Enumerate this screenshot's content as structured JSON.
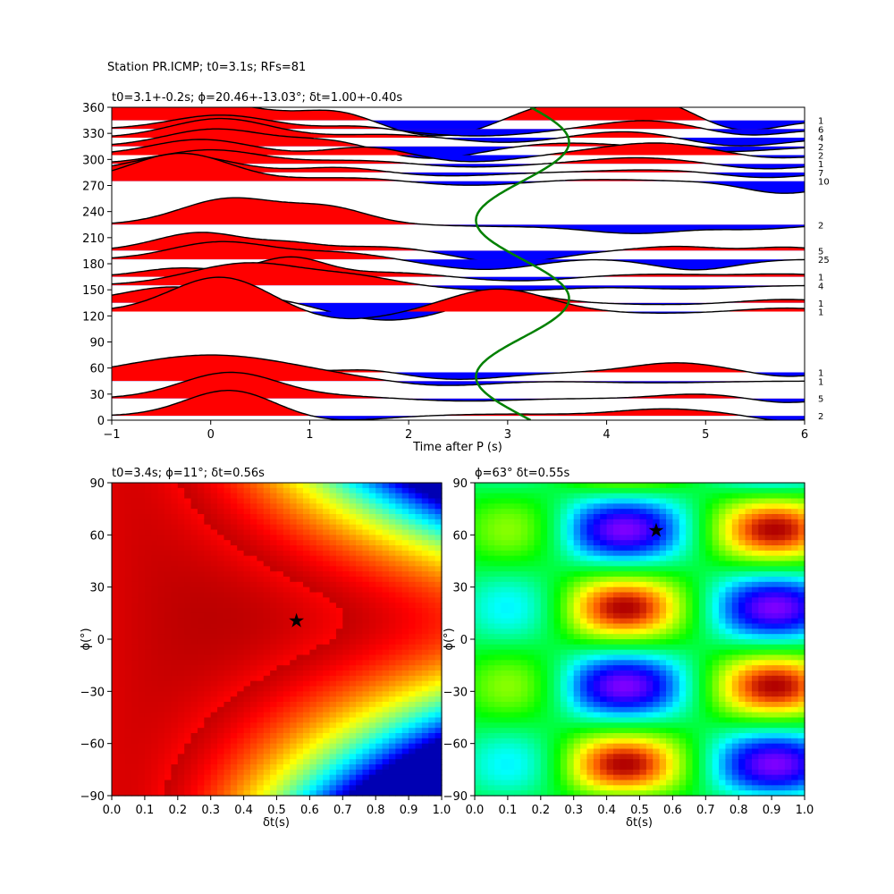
{
  "suptitle": "Station PR.ICMP; t0=3.1s; RFs=81",
  "chart_data": [
    {
      "type": "line",
      "title": "t0=3.1+-0.2s; ϕ=20.46+-13.03°; δt=1.00+-0.40s",
      "xlabel": "Time after P (s)",
      "ylabel": "",
      "xlim": [
        -1,
        6
      ],
      "ylim": [
        0,
        360
      ],
      "xticks": [
        -1,
        0,
        1,
        2,
        3,
        4,
        5,
        6
      ],
      "yticks": [
        0,
        30,
        60,
        90,
        120,
        150,
        180,
        210,
        240,
        270,
        300,
        330,
        360
      ],
      "fill_positive_color": "#ff0000",
      "fill_negative_color": "#0000ff",
      "curve_color": "#008000",
      "traces": [
        {
          "baz": 345,
          "count": "1",
          "peaks": [
            [
              -0.3,
              0.7,
              25
            ],
            [
              1.3,
              0.35,
              12
            ],
            [
              3.4,
              0.5,
              20
            ],
            [
              4.4,
              0.5,
              25
            ],
            [
              2.4,
              0.6,
              -20
            ],
            [
              5.3,
              0.4,
              -15
            ]
          ]
        },
        {
          "baz": 335,
          "count": "6",
          "peaks": [
            [
              0.1,
              0.5,
              16
            ],
            [
              1.5,
              0.3,
              4
            ],
            [
              2.7,
              0.6,
              -8
            ],
            [
              4.4,
              0.5,
              10
            ],
            [
              5.4,
              0.4,
              -8
            ]
          ]
        },
        {
          "baz": 325,
          "count": "4",
          "peaks": [
            [
              0.1,
              0.5,
              22
            ],
            [
              1.8,
              0.5,
              4
            ],
            [
              3.0,
              0.5,
              -6
            ],
            [
              4.2,
              0.5,
              8
            ],
            [
              5.3,
              0.5,
              -10
            ]
          ]
        },
        {
          "baz": 315,
          "count": "2",
          "peaks": [
            [
              0.05,
              0.5,
              20
            ],
            [
              1.2,
              0.4,
              8
            ],
            [
              2.2,
              0.5,
              -14
            ],
            [
              3.6,
              0.5,
              4
            ],
            [
              5.2,
              0.5,
              -6
            ]
          ]
        },
        {
          "baz": 305,
          "count": "2",
          "peaks": [
            [
              -0.1,
              0.5,
              18
            ],
            [
              1.6,
              0.4,
              10
            ],
            [
              2.6,
              0.5,
              -8
            ],
            [
              4.5,
              0.6,
              14
            ],
            [
              5.6,
              0.4,
              -5
            ]
          ]
        },
        {
          "baz": 295,
          "count": "1",
          "peaks": [
            [
              0.0,
              0.5,
              16
            ],
            [
              1.5,
              0.5,
              4
            ],
            [
              2.6,
              0.5,
              -4
            ],
            [
              4.3,
              0.5,
              7
            ],
            [
              5.6,
              0.4,
              -6
            ]
          ]
        },
        {
          "baz": 285,
          "count": "7",
          "peaks": [
            [
              -0.3,
              0.5,
              20
            ],
            [
              1.3,
              0.4,
              6
            ],
            [
              2.4,
              0.5,
              -4
            ],
            [
              4.4,
              0.5,
              3
            ],
            [
              5.6,
              0.4,
              -6
            ]
          ]
        },
        {
          "baz": 275,
          "count": "10",
          "peaks": [
            [
              -0.3,
              0.5,
              32
            ],
            [
              1.4,
              0.5,
              4
            ],
            [
              2.6,
              0.5,
              -5
            ],
            [
              3.9,
              0.5,
              2
            ],
            [
              5.8,
              0.4,
              -14
            ]
          ]
        },
        {
          "baz": 225,
          "count": "2",
          "peaks": [
            [
              0.2,
              0.5,
              30
            ],
            [
              1.2,
              0.4,
              18
            ],
            [
              3.0,
              0.6,
              -2
            ],
            [
              4.3,
              0.5,
              -10
            ],
            [
              5.5,
              0.4,
              -5
            ]
          ]
        },
        {
          "baz": 195,
          "count": "5",
          "peaks": [
            [
              -0.1,
              0.45,
              21
            ],
            [
              0.8,
              0.3,
              7
            ],
            [
              1.7,
              0.5,
              5
            ],
            [
              3.0,
              0.5,
              -14
            ],
            [
              4.7,
              0.4,
              5
            ],
            [
              5.8,
              0.3,
              4
            ]
          ]
        },
        {
          "baz": 185,
          "count": "25",
          "peaks": [
            [
              0.1,
              0.5,
              20
            ],
            [
              1.3,
              0.5,
              8
            ],
            [
              2.8,
              0.6,
              -12
            ],
            [
              3.6,
              0.4,
              3
            ],
            [
              4.9,
              0.4,
              -12
            ]
          ]
        },
        {
          "baz": 165,
          "count": "1",
          "peaks": [
            [
              -0.3,
              0.4,
              10
            ],
            [
              0.8,
              0.35,
              22
            ],
            [
              1.8,
              0.5,
              5
            ],
            [
              3.1,
              0.5,
              -5
            ],
            [
              4.5,
              0.6,
              3
            ],
            [
              5.8,
              0.4,
              3
            ]
          ]
        },
        {
          "baz": 155,
          "count": "4",
          "peaks": [
            [
              0.4,
              0.6,
              26
            ],
            [
              1.5,
              0.4,
              8
            ],
            [
              3.0,
              0.6,
              -6
            ],
            [
              4.8,
              0.5,
              -4
            ]
          ]
        },
        {
          "baz": 135,
          "count": "1",
          "peaks": [
            [
              -0.4,
              0.5,
              18
            ],
            [
              0.6,
              0.4,
              6
            ],
            [
              1.8,
              0.6,
              -20
            ],
            [
              3.0,
              0.4,
              12
            ],
            [
              4.6,
              0.5,
              -2
            ],
            [
              5.8,
              0.4,
              4
            ]
          ]
        },
        {
          "baz": 125,
          "count": "1",
          "peaks": [
            [
              0.1,
              0.5,
              40
            ],
            [
              1.3,
              0.5,
              -10
            ],
            [
              2.9,
              0.5,
              26
            ],
            [
              4.5,
              0.5,
              -2
            ],
            [
              5.8,
              0.4,
              4
            ]
          ]
        },
        {
          "baz": 55,
          "count": "1",
          "peaks": [
            [
              0.1,
              0.45,
              18
            ],
            [
              1.6,
              0.3,
              4
            ],
            [
              2.5,
              0.5,
              -8
            ],
            [
              4.7,
              0.45,
              11
            ],
            [
              5.8,
              0.3,
              -5
            ]
          ]
        },
        {
          "baz": 45,
          "count": "1",
          "peaks": [
            [
              0.0,
              0.9,
              30
            ],
            [
              2.3,
              0.5,
              -6
            ],
            [
              4.5,
              0.6,
              -2
            ]
          ]
        },
        {
          "baz": 25,
          "count": "5",
          "peaks": [
            [
              0.2,
              0.5,
              30
            ],
            [
              1.4,
              0.4,
              2
            ],
            [
              2.6,
              0.5,
              -3
            ],
            [
              4.9,
              0.4,
              5
            ],
            [
              5.8,
              0.3,
              -5
            ]
          ]
        },
        {
          "baz": 5,
          "count": "2",
          "peaks": [
            [
              0.2,
              0.45,
              30
            ],
            [
              1.2,
              0.5,
              -6
            ],
            [
              3.0,
              0.6,
              2
            ],
            [
              4.6,
              0.5,
              8
            ],
            [
              5.8,
              0.3,
              -6
            ]
          ]
        }
      ],
      "t0_curve": {
        "center": 3.15,
        "amplitude": 0.47,
        "description": "t0 sinusoid vs back-azimuth"
      }
    },
    {
      "type": "heatmap",
      "title": "t0=3.4s; ϕ=11°; δt=0.56s",
      "xlabel": "δt(s)",
      "ylabel": "ϕ(°)",
      "xlim": [
        0,
        1
      ],
      "ylim": [
        -90,
        90
      ],
      "xticks": [
        "0.0",
        "0.1",
        "0.2",
        "0.3",
        "0.4",
        "0.5",
        "0.6",
        "0.7",
        "0.8",
        "0.9",
        "1.0"
      ],
      "yticks": [
        -90,
        -60,
        -30,
        0,
        30,
        60,
        90
      ],
      "colormap": "jet-like",
      "optimum": {
        "dt": 0.56,
        "phi": 11
      }
    },
    {
      "type": "heatmap",
      "title": "ϕ=63° δt=0.55s",
      "xlabel": "δt(s)",
      "ylabel": "ϕ(°)",
      "xlim": [
        0,
        1
      ],
      "ylim": [
        -90,
        90
      ],
      "xticks": [
        "0.0",
        "0.1",
        "0.2",
        "0.3",
        "0.4",
        "0.5",
        "0.6",
        "0.7",
        "0.8",
        "0.9",
        "1.0"
      ],
      "yticks": [
        -90,
        -60,
        -30,
        0,
        30,
        60,
        90
      ],
      "colormap": "hsv-like",
      "optimum": {
        "dt": 0.55,
        "phi": 63
      }
    }
  ]
}
